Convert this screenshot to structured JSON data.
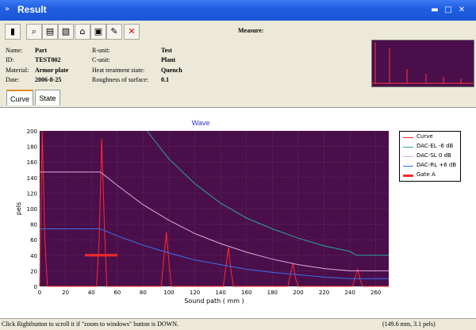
{
  "window": {
    "title": "Result"
  },
  "toolbar": {
    "buttons": [
      {
        "icon": "chart-icon"
      },
      {
        "icon": "zoom-icon"
      },
      {
        "icon": "print-icon"
      },
      {
        "icon": "export-icon"
      },
      {
        "icon": "home-icon"
      },
      {
        "icon": "window-icon"
      },
      {
        "icon": "tools-icon"
      },
      {
        "icon": "close-icon"
      }
    ],
    "measure_label": "Measure:"
  },
  "info": {
    "name_label": "Name:",
    "name": "Part",
    "id_label": "ID:",
    "id": "TEST002",
    "material_label": "Material:",
    "material": "Armor plate",
    "date_label": "Date:",
    "date": "2006-8-25",
    "runit_label": "R-unit:",
    "runit": "Test",
    "cunit_label": "C-unit:",
    "cunit": "Plant",
    "heat_label": "Heat treatment state:",
    "heat": "Quench",
    "rough_label": "Roughness of surface:",
    "rough": "0.1"
  },
  "tabs": [
    {
      "label": "Curve"
    },
    {
      "label": "State"
    }
  ],
  "chart_data": {
    "type": "line",
    "title": "Wave",
    "xlabel": "Sound path ( mm )",
    "ylabel": "pels",
    "xlim": [
      0,
      270
    ],
    "ylim": [
      0,
      200
    ],
    "xticks": [
      0,
      20,
      40,
      60,
      80,
      100,
      120,
      140,
      160,
      180,
      200,
      220,
      240,
      260
    ],
    "yticks": [
      0,
      20,
      40,
      60,
      80,
      100,
      120,
      140,
      160,
      180,
      200
    ],
    "series": [
      {
        "name": "Curve",
        "color": "#ff2a2a",
        "x": [
          0,
          2,
          4,
          6,
          8,
          44,
          46,
          48,
          50,
          52,
          94,
          96,
          98,
          100,
          102,
          142,
          144,
          146,
          148,
          150,
          192,
          194,
          196,
          198,
          200,
          242,
          244,
          246,
          248,
          250,
          270
        ],
        "y": [
          0,
          200,
          60,
          0,
          0,
          0,
          60,
          190,
          80,
          0,
          0,
          35,
          70,
          30,
          0,
          0,
          25,
          50,
          20,
          0,
          0,
          15,
          30,
          10,
          0,
          0,
          12,
          22,
          8,
          0,
          0
        ]
      },
      {
        "name": "DAC-EL -6 dB",
        "color": "#2aa89a",
        "x": [
          83,
          100,
          120,
          140,
          160,
          180,
          200,
          220,
          240,
          245,
          270
        ],
        "y": [
          200,
          164,
          132,
          107,
          88,
          74,
          62,
          52,
          45,
          40,
          40
        ]
      },
      {
        "name": "DAC-SL 0 dB",
        "color": "#e0a8e0",
        "x": [
          0,
          47,
          60,
          80,
          100,
          120,
          140,
          160,
          180,
          200,
          220,
          240,
          270
        ],
        "y": [
          147,
          147,
          130,
          105,
          85,
          68,
          55,
          44,
          35,
          28,
          23,
          20,
          20
        ]
      },
      {
        "name": "DAC-RL +6 dB",
        "color": "#3a6ff0",
        "x": [
          0,
          47,
          60,
          80,
          100,
          120,
          140,
          160,
          180,
          200,
          220,
          240,
          270
        ],
        "y": [
          74,
          74,
          65,
          53,
          43,
          34,
          28,
          22,
          18,
          15,
          12,
          10,
          10
        ]
      },
      {
        "name": "Gate A",
        "color": "#ff2a2a",
        "x": [
          35,
          60
        ],
        "y": [
          40,
          40
        ]
      }
    ]
  },
  "thumbnail": {
    "name": "overview"
  },
  "status": {
    "hint": "Click Rightbutton to scroll it if  \"zoom to windows\" button is DOWN.",
    "coords": "(149.6 mm, 3.1 pels)"
  },
  "colors": {
    "plot_bg": "#4a0f4a",
    "grid": "#7a5a7a",
    "title_blue": "#3333cc"
  }
}
